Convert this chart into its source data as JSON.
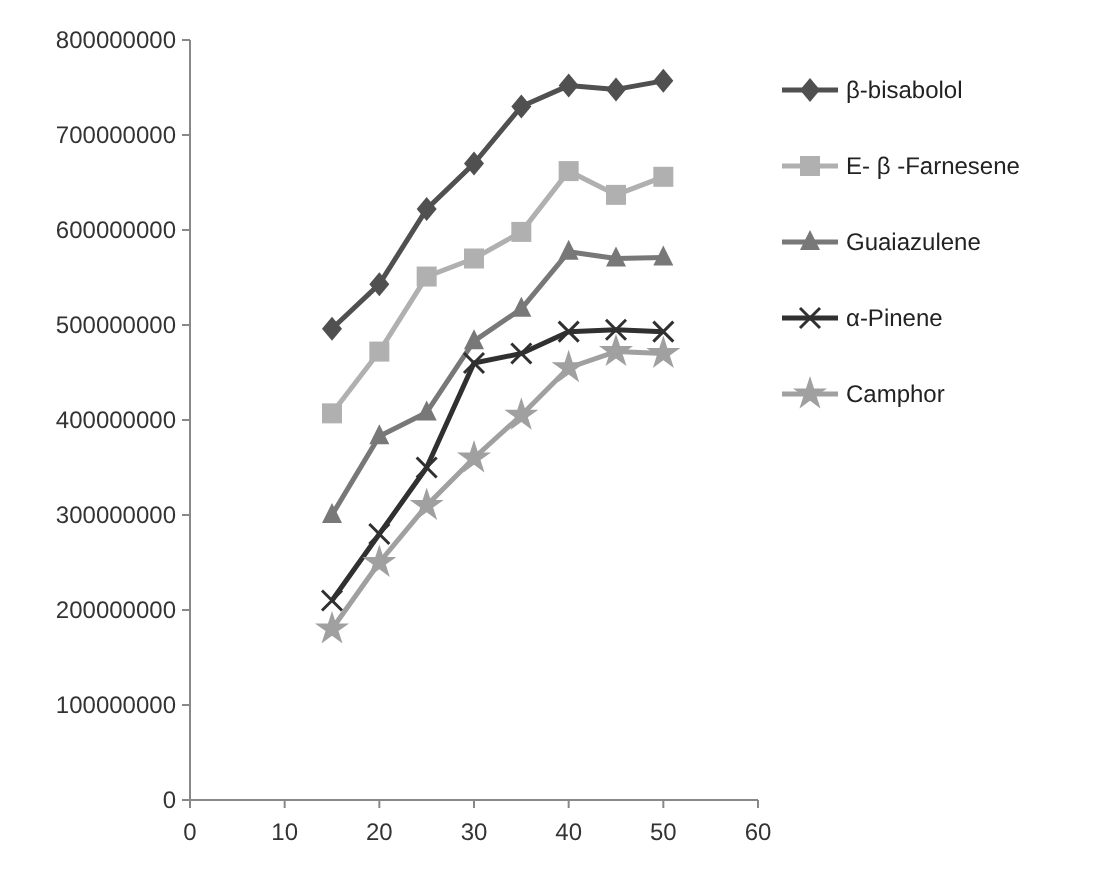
{
  "chart_data": {
    "type": "line",
    "x": [
      15,
      20,
      25,
      30,
      35,
      40,
      45,
      50
    ],
    "series": [
      {
        "name": "β-bisabolol",
        "color": "#505050",
        "marker": "diamond",
        "values": [
          496000000,
          543000000,
          622000000,
          670000000,
          730000000,
          752000000,
          748000000,
          757000000
        ]
      },
      {
        "name": "E- β -Farnesene",
        "color": "#b0b0b0",
        "marker": "square",
        "values": [
          407000000,
          472000000,
          551000000,
          570000000,
          598000000,
          662000000,
          637000000,
          656000000
        ]
      },
      {
        "name": "Guaiazulene",
        "color": "#787878",
        "marker": "triangle",
        "values": [
          300000000,
          383000000,
          408000000,
          483000000,
          517000000,
          577000000,
          570000000,
          571000000
        ]
      },
      {
        "name": "α-Pinene",
        "color": "#303030",
        "marker": "cross",
        "values": [
          210000000,
          280000000,
          350000000,
          460000000,
          470000000,
          493000000,
          495000000,
          493000000
        ]
      },
      {
        "name": "Camphor",
        "color": "#a0a0a0",
        "marker": "star",
        "values": [
          180000000,
          250000000,
          310000000,
          360000000,
          405000000,
          455000000,
          472000000,
          470000000
        ]
      }
    ],
    "xlim": [
      0,
      60
    ],
    "xticks": [
      0,
      10,
      20,
      30,
      40,
      50,
      60
    ],
    "ylim": [
      0,
      800000000
    ],
    "yticks": [
      0,
      100000000,
      200000000,
      300000000,
      400000000,
      500000000,
      600000000,
      700000000,
      800000000
    ],
    "grid": false,
    "legend": "right"
  }
}
